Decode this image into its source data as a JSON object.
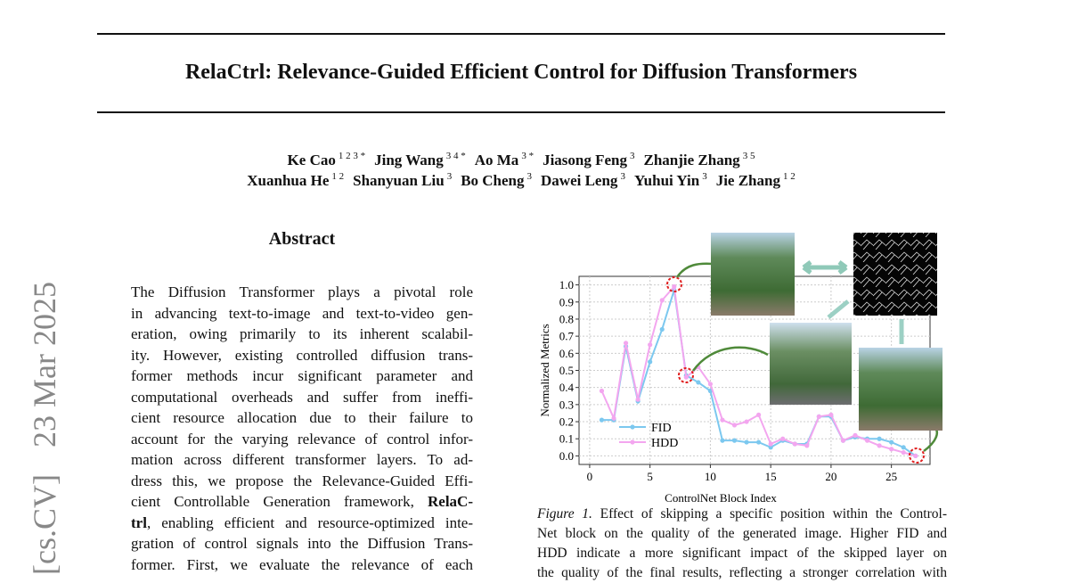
{
  "side_stamp": {
    "category": "[cs.CV]",
    "date": "23 Mar 2025"
  },
  "title": "RelaCtrl: Relevance-Guided Efficient Control for Diffusion Transformers",
  "authors": [
    [
      {
        "name": "Ke Cao",
        "sup": "1 2 3 *"
      },
      {
        "name": "Jing Wang",
        "sup": "3 4 *"
      },
      {
        "name": "Ao Ma",
        "sup": "3 *"
      },
      {
        "name": "Jiasong Feng",
        "sup": "3"
      },
      {
        "name": "Zhanjie Zhang",
        "sup": "3 5"
      }
    ],
    [
      {
        "name": "Xuanhua He",
        "sup": "1 2"
      },
      {
        "name": "Shanyuan Liu",
        "sup": "3"
      },
      {
        "name": "Bo Cheng",
        "sup": "3"
      },
      {
        "name": "Dawei Leng",
        "sup": "3"
      },
      {
        "name": "Yuhui Yin",
        "sup": "3"
      },
      {
        "name": "Jie Zhang",
        "sup": "1 2"
      }
    ]
  ],
  "abstract": {
    "heading": "Abstract",
    "lines": [
      "The Diffusion Transformer plays a pivotal role",
      "in advancing text-to-image and text-to-video gen-",
      "eration, owing primarily to its inherent scalabil-",
      "ity. However, existing controlled diffusion trans-",
      "former methods incur significant parameter and",
      "computational overheads and suffer from ineffi-",
      "cient resource allocation due to their failure to",
      "account for the varying relevance of control infor-",
      "mation across different transformer layers. To ad-",
      "dress this, we propose the Relevance-Guided Effi-",
      [
        {
          "text": "cient Controllable Generation framework, "
        },
        {
          "text": "RelaC-",
          "bold": true
        }
      ],
      [
        {
          "text": "trl",
          "bold": true
        },
        {
          "text": ", enabling efficient and resource-optimized inte-"
        }
      ],
      "gration of control signals into the Diffusion Trans-",
      "former. First, we evaluate the relevance of each"
    ]
  },
  "chart_data": {
    "type": "line",
    "x_label": "ControlNet Block Index",
    "y_label": "Normalized Metrics",
    "x": [
      1,
      2,
      3,
      4,
      5,
      6,
      7,
      8,
      9,
      10,
      11,
      12,
      13,
      14,
      15,
      16,
      17,
      18,
      19,
      20,
      21,
      22,
      23,
      24,
      25,
      26,
      27
    ],
    "series": [
      {
        "name": "FID",
        "color": "#7cc8ef",
        "values": [
          0.21,
          0.21,
          0.64,
          0.32,
          0.55,
          0.74,
          0.97,
          0.47,
          0.43,
          0.38,
          0.09,
          0.09,
          0.08,
          0.08,
          0.05,
          0.09,
          0.07,
          0.07,
          0.23,
          0.23,
          0.09,
          0.11,
          0.1,
          0.1,
          0.08,
          0.05,
          0.0
        ]
      },
      {
        "name": "HDD",
        "color": "#f3a6ef",
        "values": [
          0.38,
          0.22,
          0.66,
          0.33,
          0.65,
          0.91,
          0.99,
          0.46,
          0.52,
          0.42,
          0.21,
          0.18,
          0.2,
          0.24,
          0.07,
          0.1,
          0.07,
          0.06,
          0.23,
          0.24,
          0.09,
          0.12,
          0.09,
          0.06,
          0.04,
          0.02,
          0.0
        ]
      }
    ],
    "xlim": [
      -0.88,
      28.2
    ],
    "ylim": [
      -0.05,
      1.05
    ],
    "xticks": [
      0,
      5,
      10,
      15,
      20,
      25
    ],
    "yticks": [
      {
        "value": 0,
        "label": "0.0"
      },
      {
        "value": 0.1,
        "label": "0.1"
      },
      {
        "value": 0.2,
        "label": "0.2"
      },
      {
        "value": 0.3,
        "label": "0.3"
      },
      {
        "value": 0.4,
        "label": "0.4"
      },
      {
        "value": 0.5,
        "label": "0.5"
      },
      {
        "value": 0.6,
        "label": "0.6"
      },
      {
        "value": 0.7,
        "label": "0.7"
      },
      {
        "value": 0.8,
        "label": "0.8"
      },
      {
        "value": 0.9,
        "label": "0.9"
      },
      {
        "value": 1,
        "label": "1.0"
      }
    ],
    "grid": true,
    "legend": "lower left"
  },
  "caption": {
    "label": "Figure 1.",
    "lines": [
      " Effect of skipping a specific position within the Control-",
      "Net block on the quality of the generated image. Higher FID and",
      "HDD indicate a more significant impact of the skipped layer on",
      "the quality of the final results, reflecting a stronger correlation with"
    ]
  }
}
